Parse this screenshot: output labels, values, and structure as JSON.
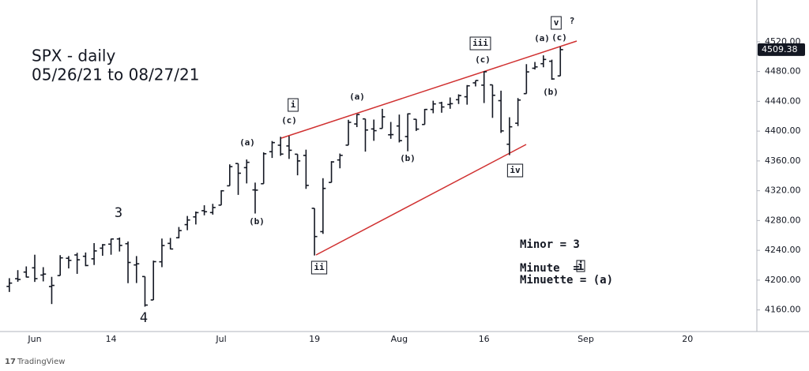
{
  "chart_data": {
    "type": "ohlc",
    "title": "SPX - daily",
    "subtitle": "05/26/21 to 08/27/21",
    "categories": [
      null,
      null,
      null,
      "Jun",
      null,
      null,
      null,
      null,
      null,
      null,
      null,
      null,
      "14",
      null,
      null,
      null,
      null,
      null,
      null,
      null,
      null,
      null,
      null,
      null,
      null,
      "Jul",
      null,
      null,
      null,
      null,
      null,
      null,
      null,
      null,
      null,
      null,
      "19",
      null,
      null,
      null,
      null,
      null,
      null,
      null,
      null,
      null,
      "Aug",
      null,
      null,
      null,
      null,
      null,
      null,
      null,
      null,
      null,
      "16",
      null,
      null,
      null,
      null,
      null,
      null,
      null,
      null,
      null,
      null,
      null,
      "Sep",
      null,
      null,
      null,
      null,
      null,
      null,
      null,
      null,
      null,
      null,
      null,
      "20",
      null,
      null,
      null,
      null,
      null,
      null,
      null,
      null
    ],
    "open": [
      4191.6,
      4201.9,
      4210.8,
      4216.5,
      4206.8,
      4191.4,
      4206.1,
      4229.3,
      4233.8,
      4232.0,
      4228.6,
      4242.9,
      4248.3,
      4255.3,
      4248.9,
      4220.4,
      4204.8,
      4173.4,
      4224.6,
      4249.3,
      4256.9,
      4274.5,
      4284.9,
      4293.2,
      4290.7,
      4300.7,
      4326.6,
      4356.5,
      4351.0,
      4321.1,
      4329.4,
      4372.4,
      4381.1,
      4380.1,
      4369.0,
      4367.4,
      4296.4,
      4265.1,
      4331.1,
      4361.3,
      4381.2,
      4409.6,
      4416.4,
      4402.9,
      4403.6,
      4395.1,
      4406.9,
      4392.7,
      4415.9,
      4408.9,
      4429.1,
      4437.8,
      4435.8,
      4442.2,
      4446.1,
      4464.8,
      4461.7,
      4462.1,
      4440.9,
      4382.4,
      4410.6,
      4450.3,
      4484.4,
      4490.5,
      4493.8,
      4474.1,
      null,
      null,
      null,
      null,
      null,
      null,
      null,
      null,
      null,
      null,
      null,
      null,
      null,
      null,
      null,
      null,
      null,
      null,
      null,
      null,
      null,
      null,
      null
    ],
    "high": [
      4202.6,
      4213.4,
      4218.4,
      4234.1,
      4217.4,
      4204.4,
      4233.5,
      4232.3,
      4236.7,
      4237.1,
      4249.7,
      4248.4,
      4255.6,
      4257.2,
      4251.9,
      4232.3,
      4204.8,
      4226.2,
      4255.8,
      4256.6,
      4271.3,
      4286.1,
      4292.1,
      4300.5,
      4302.4,
      4320.7,
      4355.4,
      4356.5,
      4361.9,
      4330.9,
      4371.6,
      4386.7,
      4392.4,
      4393.4,
      4369.0,
      4375.1,
      4296.4,
      4336.8,
      4359.7,
      4369.9,
      4415.2,
      4422.7,
      4416.4,
      4415.5,
      4429.9,
      4412.3,
      4422.2,
      4423.8,
      4416.2,
      4429.8,
      4440.8,
      4439.4,
      4445.2,
      4449.4,
      4461.8,
      4468.0,
      4480.3,
      4462.1,
      4454.3,
      4418.6,
      4444.4,
      4489.9,
      4492.8,
      4501.7,
      4495.9,
      4513.3,
      null,
      null,
      null,
      null,
      null,
      null,
      null,
      null,
      null,
      null,
      null,
      null,
      null,
      null,
      null,
      null,
      null,
      null,
      null,
      null,
      null,
      null,
      null
    ],
    "low": [
      4184.1,
      4197.8,
      4203.6,
      4197.6,
      4198.3,
      4167.9,
      4206.1,
      4215.7,
      4208.4,
      4218.7,
      4220.3,
      4232.7,
      4234.1,
      4238.4,
      4195.9,
      4196.1,
      4164.4,
      4173.4,
      4217.4,
      4241.4,
      4256.1,
      4267.0,
      4274.7,
      4287.0,
      4287.9,
      4300.7,
      4326.6,
      4314.4,
      4329.8,
      4289.4,
      4329.4,
      4364.0,
      4366.9,
      4362.7,
      4340.7,
      4322.5,
      4233.1,
      4262.1,
      4331.1,
      4350.1,
      4381.2,
      4405.4,
      4372.5,
      4387.0,
      4403.6,
      4389.7,
      4384.8,
      4373.0,
      4400.2,
      4408.9,
      4424.0,
      4424.7,
      4430.0,
      4436.4,
      4435.5,
      4460.0,
      4437.7,
      4417.8,
      4397.6,
      4367.7,
      4406.8,
      4450.3,
      4482.7,
      4485.7,
      4468.9,
      4474.1,
      null,
      null,
      null,
      null,
      null,
      null,
      null,
      null,
      null,
      null,
      null,
      null,
      null,
      null,
      null,
      null,
      null,
      null,
      null,
      null,
      null,
      null,
      null
    ],
    "close": [
      4196.0,
      4200.9,
      4204.1,
      4202.0,
      4208.1,
      4192.9,
      4229.9,
      4226.5,
      4227.3,
      4219.6,
      4239.2,
      4247.4,
      4255.2,
      4246.6,
      4223.7,
      4221.9,
      4166.5,
      4224.8,
      4246.4,
      4241.8,
      4266.5,
      4280.7,
      4290.6,
      4291.8,
      4297.5,
      4319.9,
      4352.3,
      4343.5,
      4358.1,
      4320.8,
      4369.6,
      4384.6,
      4369.2,
      4374.3,
      4360.0,
      4327.2,
      4258.5,
      4323.1,
      4358.7,
      4367.5,
      4411.8,
      4422.3,
      4401.5,
      4400.6,
      4419.2,
      4395.3,
      4387.2,
      4423.2,
      4402.7,
      4429.1,
      4436.5,
      4432.4,
      4436.8,
      4447.7,
      4460.8,
      4468.0,
      4479.7,
      4448.1,
      4400.3,
      4405.8,
      4441.7,
      4479.5,
      4486.2,
      4496.2,
      4470.0,
      4509.38,
      null,
      null,
      null,
      null,
      null,
      null,
      null,
      null,
      null,
      null,
      null,
      null,
      null,
      null,
      null,
      null,
      null,
      null,
      null,
      null,
      null,
      null,
      null
    ],
    "color": "#131722",
    "price_tag_color": "#131722",
    "trendline_color": "#d03030",
    "ylim": [
      4131,
      4576
    ],
    "yticks": [
      {
        "value": 4160,
        "label": "4160.00"
      },
      {
        "value": 4200,
        "label": "4200.00"
      },
      {
        "value": 4240,
        "label": "4240.00"
      },
      {
        "value": 4280,
        "label": "4280.00"
      },
      {
        "value": 4320,
        "label": "4320.00"
      },
      {
        "value": 4360,
        "label": "4360.00"
      },
      {
        "value": 4400,
        "label": "4400.00"
      },
      {
        "value": 4440,
        "label": "4440.00"
      },
      {
        "value": 4480,
        "label": "4480.00"
      },
      {
        "value": 4520,
        "label": "4520.00"
      }
    ],
    "grid": false,
    "annotations": [
      "3",
      "4",
      "(a)",
      "(b)",
      "(c)",
      "i",
      "ii",
      "(a)",
      "(b)",
      "iii",
      "(c)",
      "iv",
      "(a)",
      "(b)",
      "v",
      "(c)",
      "?"
    ],
    "wave_key": {
      "minor": "Minor = 3",
      "minute": "Minute  =",
      "minute_symbol": "i",
      "minuette": "Minuette = (a)"
    },
    "watermark": "TradingView"
  }
}
